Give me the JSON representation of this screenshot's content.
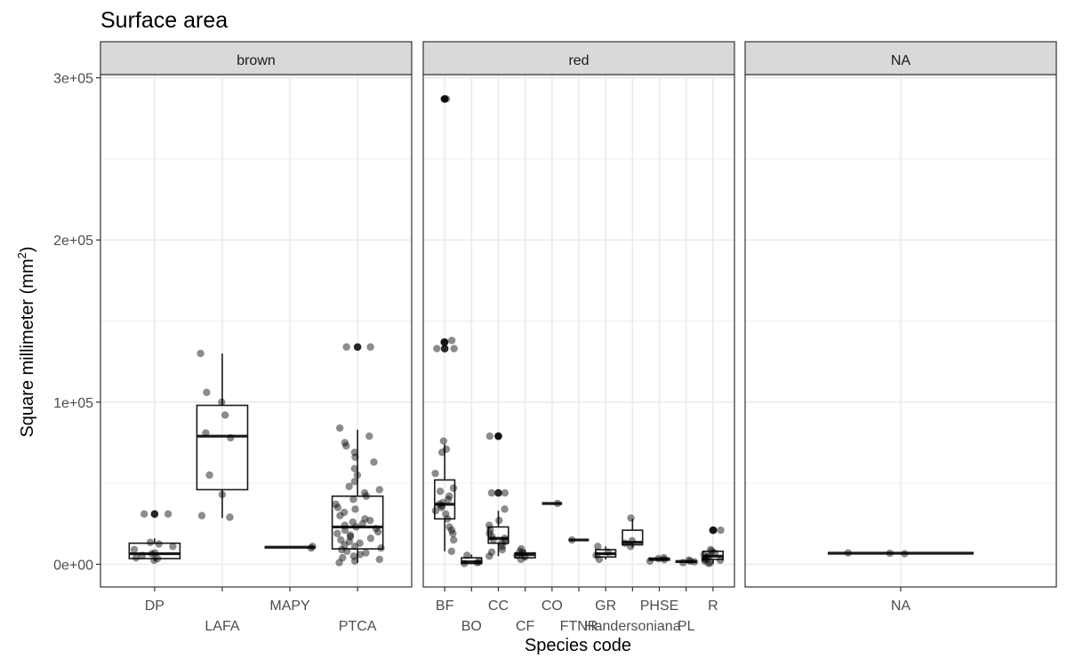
{
  "chart_data": {
    "type": "box",
    "title": "Surface area",
    "xlabel": "Species code",
    "ylabel": {
      "prefix": "Square millimeter (mm",
      "sup": "2",
      "suffix": ")"
    },
    "ylim": [
      -14000,
      302000
    ],
    "y_ticks": [
      0,
      100000,
      200000,
      300000
    ],
    "y_tick_labels": [
      "0e+00",
      "1e+05",
      "2e+05",
      "3e+05"
    ],
    "grid": true,
    "legend": "none",
    "facets": [
      {
        "name": "brown",
        "groups": [
          {
            "code": "DP",
            "box": {
              "q1": 3500,
              "median": 6500,
              "q3": 13000,
              "lower": 2000,
              "upper": 16000
            },
            "outliers": [
              31000
            ],
            "points": [
              2500,
              3500,
              4000,
              5500,
              6500,
              7000,
              9000,
              11000,
              12500,
              13500,
              31000,
              31000
            ]
          },
          {
            "code": "LAFA",
            "box": {
              "q1": 46000,
              "median": 79000,
              "q3": 98000,
              "lower": 28500,
              "upper": 130000
            },
            "outliers": [],
            "points": [
              29000,
              30000,
              43000,
              55000,
              78000,
              81000,
              92000,
              100000,
              106000,
              130000
            ]
          },
          {
            "code": "MAPY",
            "box": {
              "q1": 10500,
              "median": 10500,
              "q3": 10500,
              "lower": 10500,
              "upper": 10500
            },
            "outliers": [],
            "points": [
              10000,
              11000
            ]
          },
          {
            "code": "PTCA",
            "box": {
              "q1": 9500,
              "median": 23000,
              "q3": 42000,
              "lower": 1000,
              "upper": 83000
            },
            "outliers": [
              134000
            ],
            "points": [
              1000,
              2000,
              3000,
              4000,
              5000,
              6000,
              7000,
              8000,
              9000,
              10000,
              11000,
              12000,
              13000,
              14000,
              15000,
              16000,
              17000,
              18000,
              19000,
              20000,
              21000,
              22000,
              23000,
              24000,
              25000,
              26000,
              27000,
              28000,
              30000,
              32000,
              34000,
              35000,
              37000,
              40000,
              42000,
              44000,
              46000,
              48000,
              51000,
              55000,
              59000,
              63000,
              66000,
              69000,
              73000,
              75000,
              79000,
              84000,
              134000,
              134000
            ]
          }
        ]
      },
      {
        "name": "red",
        "groups": [
          {
            "code": "BF",
            "box": {
              "q1": 28000,
              "median": 37000,
              "q3": 52000,
              "lower": 8000,
              "upper": 74000
            },
            "outliers": [
              133000,
              137000,
              287000
            ],
            "points": [
              8000,
              15000,
              19000,
              21000,
              23000,
              28000,
              31000,
              33000,
              35000,
              36000,
              37000,
              38000,
              40000,
              42000,
              45000,
              47000,
              56000,
              69000,
              71000,
              76000,
              133000,
              133000,
              137000,
              138000,
              287000,
              287000
            ]
          },
          {
            "code": "BO",
            "box": {
              "q1": 500,
              "median": 1500,
              "q3": 4000,
              "lower": 0,
              "upper": 6000
            },
            "outliers": [],
            "points": [
              500,
              1000,
              1500,
              5500
            ]
          },
          {
            "code": "CC",
            "box": {
              "q1": 13000,
              "median": 16000,
              "q3": 23000,
              "lower": 5000,
              "upper": 33000
            },
            "outliers": [
              44000,
              79000
            ],
            "points": [
              5000,
              7500,
              9000,
              11000,
              13000,
              14000,
              15000,
              16000,
              17000,
              19000,
              21000,
              24000,
              27000,
              34000,
              44000,
              44000,
              79000,
              79000
            ]
          },
          {
            "code": "CF",
            "box": {
              "q1": 4000,
              "median": 6000,
              "q3": 7000,
              "lower": 3000,
              "upper": 9000
            },
            "outliers": [],
            "points": [
              3000,
              4500,
              5500,
              7000,
              8000,
              9500
            ]
          },
          {
            "code": "CO",
            "box": {
              "q1": 37500,
              "median": 37500,
              "q3": 37500,
              "lower": 37500,
              "upper": 37500
            },
            "outliers": [],
            "points": [
              37500
            ]
          },
          {
            "code": "FTNR",
            "box": {
              "q1": 15000,
              "median": 15000,
              "q3": 15000,
              "lower": 15000,
              "upper": 15000
            },
            "outliers": [],
            "points": [
              15000
            ]
          },
          {
            "code": "GR",
            "box": {
              "q1": 4500,
              "median": 6500,
              "q3": 9000,
              "lower": 3000,
              "upper": 11000
            },
            "outliers": [],
            "points": [
              3000,
              5500,
              7500,
              11000
            ]
          },
          {
            "code": "Handersoniana",
            "box": {
              "q1": 12000,
              "median": 13500,
              "q3": 21000,
              "lower": 10500,
              "upper": 28000
            },
            "outliers": [],
            "points": [
              11000,
              13000,
              14500,
              28500
            ]
          },
          {
            "code": "PHSE",
            "box": {
              "q1": 2500,
              "median": 3000,
              "q3": 3800,
              "lower": 2000,
              "upper": 4000
            },
            "outliers": [],
            "points": [
              2000,
              2800,
              3500,
              4000
            ]
          },
          {
            "code": "PL",
            "box": {
              "q1": 1200,
              "median": 1700,
              "q3": 2100,
              "lower": 1000,
              "upper": 2300
            },
            "outliers": [],
            "points": [
              1000,
              1500,
              2000,
              2500
            ]
          },
          {
            "code": "R",
            "box": {
              "q1": 3000,
              "median": 5000,
              "q3": 8000,
              "lower": 500,
              "upper": 9000
            },
            "outliers": [
              21000
            ],
            "points": [
              500,
              1000,
              2000,
              2500,
              3000,
              3500,
              4500,
              5000,
              6000,
              7000,
              8000,
              9000,
              21000,
              21000
            ]
          }
        ]
      },
      {
        "name": "NA",
        "groups": [
          {
            "code": "NA",
            "box": {
              "q1": 6800,
              "median": 6800,
              "q3": 6800,
              "lower": 6800,
              "upper": 6800
            },
            "outliers": [],
            "points": [
              6500,
              6800,
              7000
            ]
          }
        ]
      }
    ],
    "colors": {
      "panel_background": "#ffffff",
      "grid": "#ebebeb",
      "strip_fill": "#d9d9d9",
      "strip_border": "#333333",
      "panel_border": "#333333",
      "box_stroke": "#1a1a1a",
      "point": "#000000"
    }
  }
}
